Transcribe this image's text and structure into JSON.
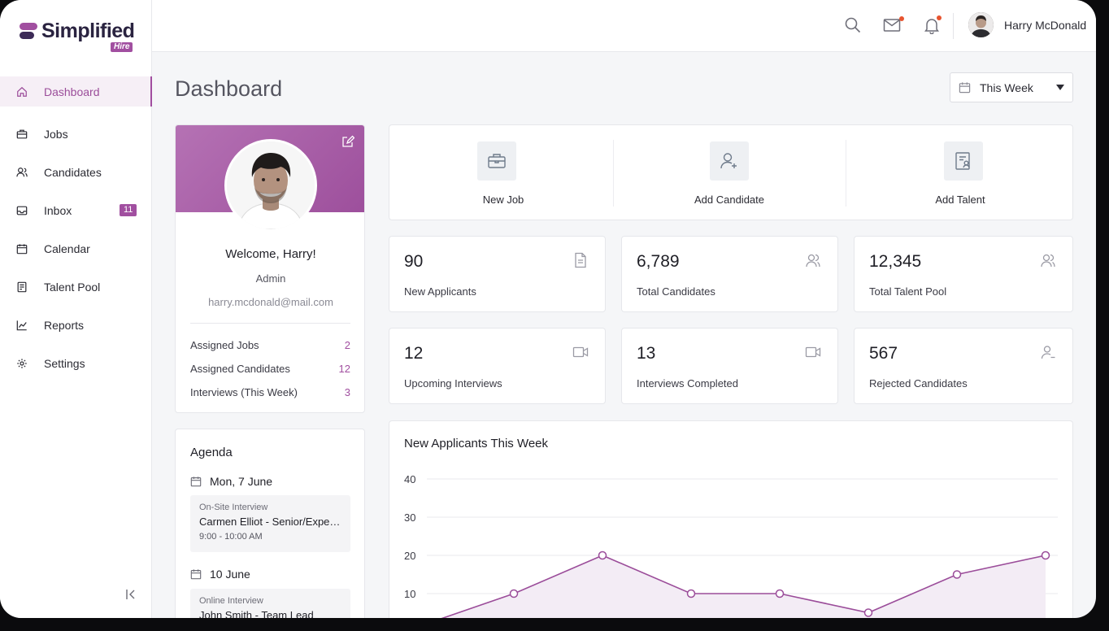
{
  "brand": {
    "name": "Simplified",
    "badge": "Hire"
  },
  "sidebar": {
    "items": [
      {
        "label": "Dashboard",
        "icon": "home-icon"
      },
      {
        "label": "Jobs",
        "icon": "briefcase-icon"
      },
      {
        "label": "Candidates",
        "icon": "users-icon"
      },
      {
        "label": "Inbox",
        "icon": "inbox-icon",
        "badge": "11"
      },
      {
        "label": "Calendar",
        "icon": "calendar-icon"
      },
      {
        "label": "Talent Pool",
        "icon": "talent-pool-icon"
      },
      {
        "label": "Reports",
        "icon": "chart-icon"
      },
      {
        "label": "Settings",
        "icon": "gear-icon"
      }
    ]
  },
  "topbar": {
    "user_name": "Harry McDonald"
  },
  "main": {
    "title": "Dashboard",
    "period": "This Week"
  },
  "profile": {
    "welcome": "Welcome, Harry!",
    "role": "Admin",
    "email": "harry.mcdonald@mail.com",
    "stats": [
      {
        "label": "Assigned Jobs",
        "value": "2"
      },
      {
        "label": "Assigned Candidates",
        "value": "12"
      },
      {
        "label": "Interviews (This Week)",
        "value": "3"
      }
    ]
  },
  "agenda": {
    "title": "Agenda",
    "days": [
      {
        "date": "Mon, 7 June",
        "type": "On-Site Interview",
        "name": "Carmen Elliot - Senior/Experienced",
        "time": "9:00 - 10:00 AM"
      },
      {
        "date": "10 June",
        "type": "Online Interview",
        "name": "John Smith - Team Lead",
        "time": ""
      }
    ]
  },
  "actions": [
    {
      "label": "New Job",
      "icon": "briefcase-icon"
    },
    {
      "label": "Add Candidate",
      "icon": "add-user-icon"
    },
    {
      "label": "Add Talent",
      "icon": "talent-icon"
    }
  ],
  "stats": [
    {
      "value": "90",
      "label": "New Applicants",
      "icon": "document-icon"
    },
    {
      "value": "6,789",
      "label": "Total Candidates",
      "icon": "users-icon"
    },
    {
      "value": "12,345",
      "label": "Total Talent Pool",
      "icon": "users-icon"
    },
    {
      "value": "12",
      "label": "Upcoming Interviews",
      "icon": "video-icon"
    },
    {
      "value": "13",
      "label": "Interviews Completed",
      "icon": "video-icon"
    },
    {
      "value": "567",
      "label": "Rejected Candidates",
      "icon": "user-minus-icon"
    }
  ],
  "chart_data": {
    "type": "area",
    "title": "New Applicants This Week",
    "x": [
      0,
      1,
      2,
      3,
      4,
      5,
      6,
      7
    ],
    "values": [
      2,
      10,
      20,
      10,
      10,
      5,
      15,
      20
    ],
    "ylim": [
      0,
      40
    ],
    "yticks": [
      "40",
      "30",
      "20",
      "10"
    ],
    "grid": true,
    "color": "#9b4d9a"
  }
}
